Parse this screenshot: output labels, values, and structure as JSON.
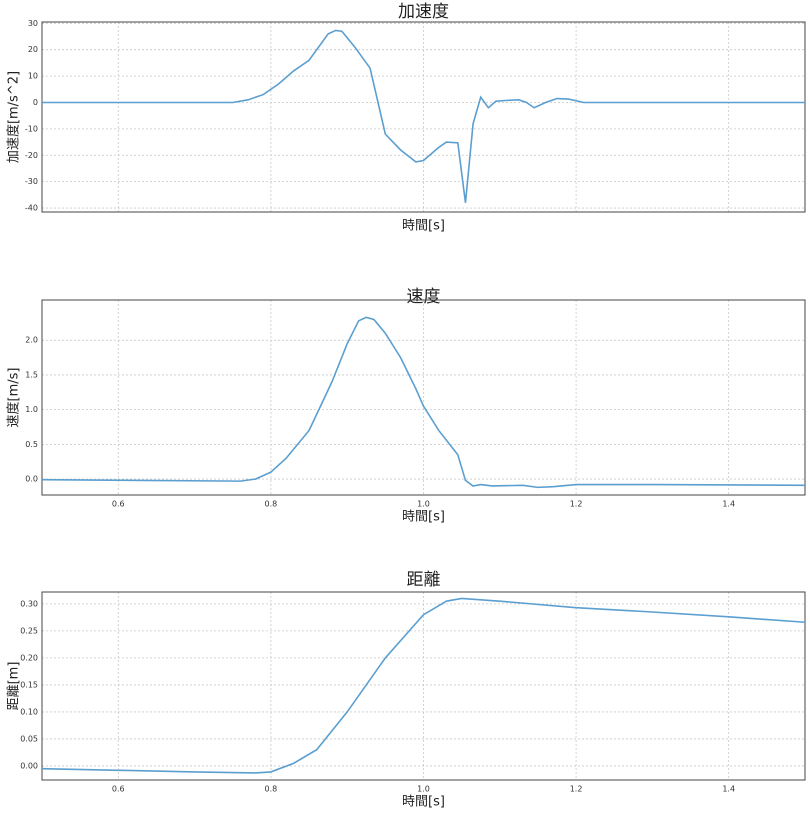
{
  "chart_data": [
    {
      "type": "line",
      "title": "加速度",
      "x_label": "時間[s]",
      "y_label": "加速度[m/s^2]",
      "xlim": [
        0.5,
        1.5
      ],
      "ylim": [
        -41.5,
        30.5
      ],
      "grid": true,
      "xticks": [
        0.6,
        0.8,
        1.0,
        1.2,
        1.4
      ],
      "yticks": [
        30,
        20,
        10,
        0,
        -10,
        -20,
        -30,
        -40
      ],
      "x": [
        0.5,
        0.75,
        0.77,
        0.79,
        0.81,
        0.83,
        0.85,
        0.865,
        0.875,
        0.885,
        0.893,
        0.91,
        0.93,
        0.95,
        0.97,
        0.99,
        1.0,
        1.02,
        1.03,
        1.045,
        1.055,
        1.065,
        1.075,
        1.085,
        1.095,
        1.11,
        1.125,
        1.135,
        1.145,
        1.16,
        1.175,
        1.19,
        1.21,
        1.3,
        1.5
      ],
      "series": [
        {
          "name": "加速度",
          "color": "#5b9fd0",
          "values": [
            0,
            0,
            1,
            3,
            7,
            12,
            16,
            22,
            26,
            27.3,
            27,
            21,
            13,
            -12,
            -18,
            -22.5,
            -22,
            -17,
            -15,
            -15.3,
            -38,
            -8,
            2,
            -2,
            0.5,
            0.8,
            1,
            0,
            -2,
            0,
            1.5,
            1.3,
            0,
            0,
            0
          ]
        }
      ]
    },
    {
      "type": "line",
      "title": "速度",
      "x_label": "時間[s]",
      "y_label": "速度[m/s]",
      "xlim": [
        0.5,
        1.5
      ],
      "ylim": [
        -0.23,
        2.58
      ],
      "grid": true,
      "xticks": [
        0.6,
        0.8,
        {
          "value": 1.0,
          "label": "1.0"
        },
        1.2,
        1.4
      ],
      "yticks": [
        {
          "value": 2.0,
          "label": "2.0"
        },
        1.5,
        {
          "value": 1.0,
          "label": "1.0"
        },
        0.5,
        {
          "value": 0.0,
          "label": "0.0"
        }
      ],
      "x": [
        0.5,
        0.76,
        0.78,
        0.8,
        0.82,
        0.85,
        0.88,
        0.9,
        0.915,
        0.925,
        0.935,
        0.95,
        0.97,
        0.99,
        1.0,
        1.02,
        1.045,
        1.055,
        1.065,
        1.075,
        1.09,
        1.13,
        1.15,
        1.17,
        1.2,
        1.3,
        1.5
      ],
      "series": [
        {
          "name": "速度",
          "color": "#5b9fd0",
          "values": [
            -0.01,
            -0.03,
            0.0,
            0.1,
            0.3,
            0.7,
            1.4,
            1.95,
            2.28,
            2.33,
            2.3,
            2.1,
            1.75,
            1.3,
            1.05,
            0.7,
            0.35,
            -0.02,
            -0.1,
            -0.08,
            -0.1,
            -0.09,
            -0.12,
            -0.11,
            -0.08,
            -0.08,
            -0.09
          ]
        }
      ]
    },
    {
      "type": "line",
      "title": "距離",
      "x_label": "時間[s]",
      "y_label": "距離[m]",
      "xlim": [
        0.5,
        1.5
      ],
      "ylim": [
        -0.026,
        0.322
      ],
      "grid": true,
      "xticks": [
        0.6,
        0.8,
        {
          "value": 1.0,
          "label": "1.0"
        },
        1.2,
        1.4
      ],
      "yticks": [
        {
          "value": 0.3,
          "label": "0.30"
        },
        0.25,
        {
          "value": 0.2,
          "label": "0.20"
        },
        0.15,
        {
          "value": 0.1,
          "label": "0.10"
        },
        0.05,
        {
          "value": 0.0,
          "label": "0.00"
        }
      ],
      "x": [
        0.5,
        0.6,
        0.7,
        0.78,
        0.8,
        0.83,
        0.86,
        0.9,
        0.95,
        1.0,
        1.03,
        1.05,
        1.1,
        1.2,
        1.3,
        1.4,
        1.5
      ],
      "series": [
        {
          "name": "距離",
          "color": "#5b9fd0",
          "values": [
            -0.005,
            -0.008,
            -0.011,
            -0.013,
            -0.011,
            0.005,
            0.03,
            0.1,
            0.2,
            0.28,
            0.305,
            0.31,
            0.305,
            0.293,
            0.285,
            0.276,
            0.266
          ]
        }
      ]
    }
  ]
}
